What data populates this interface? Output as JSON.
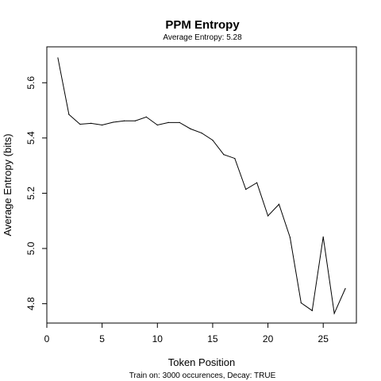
{
  "chart_data": {
    "type": "line",
    "title": "PPM Entropy",
    "subtitle": "Average Entropy: 5.28",
    "xlabel": "Token Position",
    "ylabel": "Average Entropy (bits)",
    "footnote": "Train on: 3000 occurences, Decay: TRUE",
    "xlim": [
      0,
      28
    ],
    "ylim": [
      4.73,
      5.73
    ],
    "x_ticks": [
      0,
      5,
      10,
      15,
      20,
      25
    ],
    "y_ticks": [
      4.8,
      5.0,
      5.2,
      5.4,
      5.6
    ],
    "x_tick_labels": [
      "0",
      "5",
      "10",
      "15",
      "20",
      "25"
    ],
    "y_tick_labels": [
      "4.8",
      "5.0",
      "5.2",
      "5.4",
      "5.6"
    ],
    "grid": false,
    "legend": "none",
    "series": [
      {
        "color": "#000000",
        "x": [
          1,
          2,
          3,
          4,
          5,
          6,
          7,
          8,
          9,
          10,
          11,
          12,
          13,
          14,
          15,
          16,
          17,
          18,
          19,
          20,
          21,
          22,
          23,
          24,
          25,
          26,
          27
        ],
        "y": [
          5.69,
          5.485,
          5.45,
          5.453,
          5.447,
          5.457,
          5.462,
          5.462,
          5.476,
          5.447,
          5.456,
          5.456,
          5.433,
          5.418,
          5.392,
          5.34,
          5.326,
          5.214,
          5.238,
          5.118,
          5.16,
          5.04,
          4.803,
          4.775,
          5.042,
          4.765,
          4.855
        ]
      }
    ]
  }
}
